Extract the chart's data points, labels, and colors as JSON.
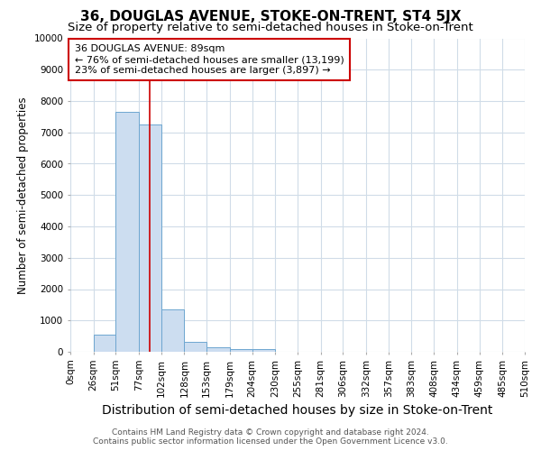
{
  "title": "36, DOUGLAS AVENUE, STOKE-ON-TRENT, ST4 5JX",
  "subtitle": "Size of property relative to semi-detached houses in Stoke-on-Trent",
  "xlabel": "Distribution of semi-detached houses by size in Stoke-on-Trent",
  "ylabel": "Number of semi-detached properties",
  "footnote": "Contains HM Land Registry data © Crown copyright and database right 2024.\nContains public sector information licensed under the Open Government Licence v3.0.",
  "bin_edges": [
    0,
    26,
    51,
    77,
    102,
    128,
    153,
    179,
    204,
    230,
    255,
    281,
    306,
    332,
    357,
    383,
    408,
    434,
    459,
    485,
    510
  ],
  "bar_heights": [
    0,
    550,
    7650,
    7250,
    1350,
    325,
    150,
    100,
    80,
    0,
    0,
    0,
    0,
    0,
    0,
    0,
    0,
    0,
    0,
    0
  ],
  "bar_color": "#ccddf0",
  "bar_edge_color": "#6ea6d0",
  "property_size": 89,
  "property_line_color": "#cc0000",
  "annotation_line1": "36 DOUGLAS AVENUE: 89sqm",
  "annotation_line2": "← 76% of semi-detached houses are smaller (13,199)",
  "annotation_line3": "23% of semi-detached houses are larger (3,897) →",
  "annotation_box_facecolor": "#ffffff",
  "annotation_box_edgecolor": "#cc0000",
  "ylim": [
    0,
    10000
  ],
  "yticks": [
    0,
    1000,
    2000,
    3000,
    4000,
    5000,
    6000,
    7000,
    8000,
    9000,
    10000
  ],
  "fig_background": "#ffffff",
  "ax_background": "#ffffff",
  "grid_color": "#d0dce8",
  "title_fontsize": 11,
  "subtitle_fontsize": 9.5,
  "xlabel_fontsize": 10,
  "ylabel_fontsize": 8.5,
  "tick_fontsize": 7.5,
  "annotation_fontsize": 8,
  "footnote_fontsize": 6.5
}
